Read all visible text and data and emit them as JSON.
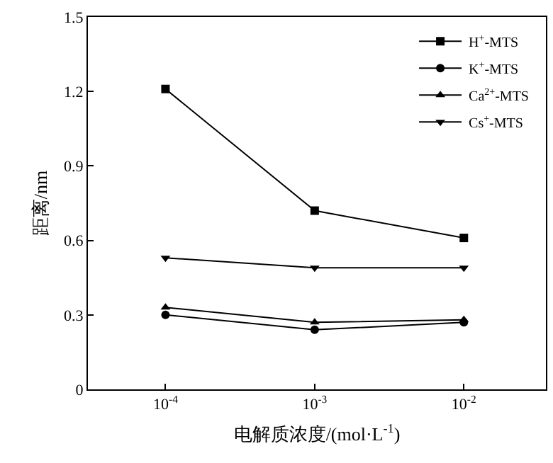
{
  "chart_data": {
    "type": "line",
    "xlabel": "电解质浓度/(mol·L$^{-1}$)",
    "ylabel": "距离/nm",
    "categories": [
      "10$^{-4}$",
      "10$^{-3}$",
      "10$^{-2}$"
    ],
    "series": [
      {
        "name": "H$^{+}$-MTS",
        "color": "#000000",
        "marker": "square",
        "values": [
          1.21,
          0.72,
          0.61
        ]
      },
      {
        "name": "K$^{+}$-MTS",
        "color": "#000000",
        "marker": "circle",
        "values": [
          0.3,
          0.24,
          0.27
        ]
      },
      {
        "name": "Ca$^{2+}$-MTS",
        "color": "#000000",
        "marker": "triangle",
        "values": [
          0.33,
          0.27,
          0.28
        ]
      },
      {
        "name": "Cs$^{+}$-MTS",
        "color": "#000000",
        "marker": "triangle-down",
        "values": [
          0.53,
          0.49,
          0.49
        ]
      }
    ],
    "ylim": [
      0,
      1.5
    ],
    "yticks": [
      0,
      0.3,
      0.6,
      0.9,
      1.2,
      1.5
    ],
    "legend": "top right",
    "line_style": "solid"
  }
}
